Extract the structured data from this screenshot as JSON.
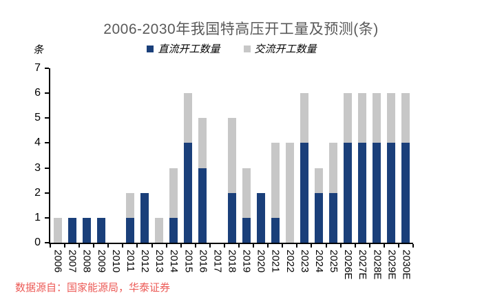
{
  "chart_data": {
    "type": "bar",
    "stacked": true,
    "title": "2006-2030年我国特高压开工量及预测(条)",
    "unit_label": "条",
    "categories": [
      "2006",
      "2007",
      "2008",
      "2009",
      "2010",
      "2011",
      "2012",
      "2013",
      "2014",
      "2015",
      "2016",
      "2017",
      "2018",
      "2019",
      "2020",
      "2021",
      "2022",
      "2023",
      "2024",
      "2025",
      "2026E",
      "2027E",
      "2028E",
      "2029E",
      "2030E"
    ],
    "series": [
      {
        "name": "直流开工数量",
        "color": "#1A3F7A",
        "values": [
          0,
          1,
          1,
          1,
          0,
          1,
          2,
          0,
          1,
          4,
          3,
          0,
          2,
          1,
          2,
          1,
          0,
          4,
          2,
          2,
          4,
          4,
          4,
          4,
          4
        ]
      },
      {
        "name": "交流开工数量",
        "color": "#C7C7C7",
        "values": [
          1,
          0,
          0,
          0,
          0,
          1,
          0,
          1,
          2,
          2,
          2,
          0,
          3,
          2,
          0,
          3,
          4,
          2,
          1,
          2,
          2,
          2,
          2,
          2,
          2
        ]
      }
    ],
    "ylim": [
      0,
      7
    ],
    "yticks": [
      0,
      1,
      2,
      3,
      4,
      5,
      6,
      7
    ],
    "legend_position": "top",
    "grid": false
  },
  "colors": {
    "title": "#595959",
    "axis": "#000000",
    "footer": "#EC5A56"
  },
  "footer": {
    "source_text": "数据源自：国家能源局，华泰证券"
  }
}
